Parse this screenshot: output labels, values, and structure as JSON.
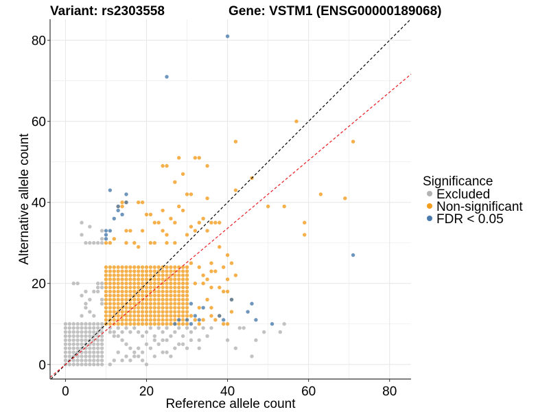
{
  "chart_data": {
    "type": "scatter",
    "title_left": "Variant: rs2303558",
    "title_right": "Gene: VSTM1 (ENSG00000189068)",
    "xlabel": "Reference allele count",
    "ylabel": "Alternative allele count",
    "xlim": [
      -3.8,
      85.3
    ],
    "ylim": [
      -3.6,
      85.2
    ],
    "xticks": [
      0,
      20,
      40,
      60,
      80
    ],
    "yticks": [
      0,
      20,
      40,
      60,
      80
    ],
    "grid": true,
    "legend": {
      "title": "Significance",
      "position": "right",
      "entries": [
        {
          "label": "Excluded",
          "color": "#b3b3b3"
        },
        {
          "label": "Non-significant",
          "color": "#f39c1e"
        },
        {
          "label": "FDR < 0.05",
          "color": "#4a7aab"
        }
      ]
    },
    "reference_lines": [
      {
        "name": "identity",
        "slope": 1.0,
        "intercept": 0,
        "color": "#000000",
        "style": "dashed"
      },
      {
        "name": "fit",
        "slope": 0.84,
        "intercept": 0,
        "color": "#e8191f",
        "style": "dashed"
      }
    ],
    "series": [
      {
        "name": "Excluded",
        "color": "#b3b3b3",
        "dense_block": {
          "x_range": [
            0,
            9
          ],
          "y_range": [
            0,
            10
          ],
          "note": "near-complete integer grid"
        },
        "points": [
          [
            1,
            10
          ],
          [
            2,
            9
          ],
          [
            3,
            10
          ],
          [
            4,
            12
          ],
          [
            5,
            15
          ],
          [
            5,
            14
          ],
          [
            6,
            13
          ],
          [
            7,
            12
          ],
          [
            6,
            16
          ],
          [
            5,
            18
          ],
          [
            7,
            18
          ],
          [
            8,
            18
          ],
          [
            9,
            16
          ],
          [
            9,
            15
          ],
          [
            8,
            19
          ],
          [
            8,
            20
          ],
          [
            9,
            19
          ],
          [
            9,
            20
          ],
          [
            3,
            20
          ],
          [
            4,
            17
          ],
          [
            2,
            20
          ],
          [
            4,
            35
          ],
          [
            6,
            34
          ],
          [
            9,
            33
          ],
          [
            9,
            30
          ],
          [
            9,
            31
          ],
          [
            8,
            30
          ],
          [
            7,
            30
          ],
          [
            6,
            30
          ],
          [
            5,
            30
          ],
          [
            4,
            32
          ],
          [
            10,
            10
          ],
          [
            11,
            9
          ],
          [
            12,
            8
          ],
          [
            13,
            7
          ],
          [
            14,
            6
          ],
          [
            15,
            5
          ],
          [
            16,
            4
          ],
          [
            17,
            3
          ],
          [
            18,
            2
          ],
          [
            19,
            1
          ],
          [
            20,
            0
          ],
          [
            11,
            8
          ],
          [
            12,
            7
          ],
          [
            13,
            9
          ],
          [
            14,
            8
          ],
          [
            15,
            9
          ],
          [
            16,
            8
          ],
          [
            17,
            9
          ],
          [
            18,
            8
          ],
          [
            19,
            7
          ],
          [
            20,
            8
          ],
          [
            21,
            9
          ],
          [
            22,
            7
          ],
          [
            23,
            9
          ],
          [
            24,
            8
          ],
          [
            25,
            9
          ],
          [
            26,
            7
          ],
          [
            27,
            8
          ],
          [
            28,
            9
          ],
          [
            29,
            7
          ],
          [
            30,
            9
          ],
          [
            31,
            8
          ],
          [
            32,
            9
          ],
          [
            33,
            6
          ],
          [
            34,
            9
          ],
          [
            35,
            7
          ],
          [
            36,
            9
          ],
          [
            40,
            6
          ],
          [
            43,
            9
          ],
          [
            44,
            9
          ],
          [
            42,
            4
          ],
          [
            46,
            2
          ],
          [
            47,
            6
          ],
          [
            49,
            8
          ],
          [
            53,
            8
          ],
          [
            54,
            10
          ],
          [
            30,
            4
          ],
          [
            31,
            6
          ],
          [
            33,
            4
          ],
          [
            25,
            3
          ],
          [
            26,
            2
          ],
          [
            22,
            2
          ],
          [
            24,
            3
          ],
          [
            14,
            1
          ],
          [
            11,
            0
          ],
          [
            12,
            1
          ],
          [
            13,
            3
          ],
          [
            15,
            2
          ],
          [
            16,
            1
          ],
          [
            17,
            2
          ],
          [
            18,
            4
          ],
          [
            19,
            3
          ],
          [
            20,
            5
          ],
          [
            21,
            4
          ],
          [
            22,
            6
          ],
          [
            23,
            5
          ],
          [
            24,
            6
          ],
          [
            25,
            6
          ],
          [
            27,
            4
          ],
          [
            28,
            5
          ],
          [
            29,
            5
          ]
        ]
      },
      {
        "name": "Non-significant",
        "color": "#f39c1e",
        "dense_block": {
          "x_range": [
            10,
            30
          ],
          "y_range": [
            10,
            24
          ],
          "note": "near-complete integer grid"
        },
        "points": [
          [
            57,
            60
          ],
          [
            42,
            55
          ],
          [
            71,
            55
          ],
          [
            28,
            51
          ],
          [
            32,
            51
          ],
          [
            33,
            51
          ],
          [
            24,
            49
          ],
          [
            25,
            49
          ],
          [
            35,
            49
          ],
          [
            29,
            47
          ],
          [
            46,
            46
          ],
          [
            27,
            45
          ],
          [
            42,
            43
          ],
          [
            63,
            42
          ],
          [
            69,
            41
          ],
          [
            31,
            42
          ],
          [
            35,
            41
          ],
          [
            30,
            42
          ],
          [
            14,
            40
          ],
          [
            15,
            40
          ],
          [
            18,
            40
          ],
          [
            19,
            40
          ],
          [
            13,
            39
          ],
          [
            14,
            39
          ],
          [
            24,
            38
          ],
          [
            21,
            37
          ],
          [
            28,
            39
          ],
          [
            29,
            38
          ],
          [
            50,
            39
          ],
          [
            54,
            39
          ],
          [
            59,
            35
          ],
          [
            59,
            32
          ],
          [
            36,
            35
          ],
          [
            37,
            35
          ],
          [
            38,
            35
          ],
          [
            33,
            35
          ],
          [
            34,
            36
          ],
          [
            35,
            33
          ],
          [
            20,
            37
          ],
          [
            22,
            35
          ],
          [
            23,
            35
          ],
          [
            26,
            36
          ],
          [
            27,
            35
          ],
          [
            31,
            34
          ],
          [
            32,
            33
          ],
          [
            24,
            33
          ],
          [
            25,
            32
          ],
          [
            30,
            32
          ],
          [
            15,
            33
          ],
          [
            16,
            33
          ],
          [
            19,
            33
          ],
          [
            10,
            30
          ],
          [
            11,
            30
          ],
          [
            12,
            31
          ],
          [
            15,
            30
          ],
          [
            17,
            30
          ],
          [
            18,
            29
          ],
          [
            21,
            30
          ],
          [
            22,
            30
          ],
          [
            25,
            30
          ],
          [
            27,
            30
          ],
          [
            38,
            29
          ],
          [
            40,
            27
          ],
          [
            31,
            25
          ],
          [
            33,
            24
          ],
          [
            36,
            25
          ],
          [
            39,
            24
          ],
          [
            41,
            25
          ],
          [
            34,
            22
          ],
          [
            35,
            21
          ],
          [
            36,
            23
          ],
          [
            37,
            23
          ],
          [
            40,
            21
          ],
          [
            42,
            22
          ],
          [
            30,
            20
          ],
          [
            32,
            20
          ],
          [
            34,
            20
          ],
          [
            36,
            19
          ],
          [
            38,
            19
          ],
          [
            39,
            18
          ],
          [
            40,
            18
          ],
          [
            41,
            16
          ],
          [
            35,
            16
          ],
          [
            33,
            14
          ],
          [
            36,
            14
          ],
          [
            41,
            13
          ],
          [
            26,
            14
          ],
          [
            28,
            13
          ],
          [
            30,
            12
          ],
          [
            31,
            12
          ],
          [
            32,
            11
          ],
          [
            33,
            10
          ],
          [
            34,
            11
          ],
          [
            36,
            12
          ],
          [
            37,
            11
          ],
          [
            38,
            12
          ],
          [
            39,
            10
          ],
          [
            40,
            10
          ],
          [
            29,
            10
          ]
        ]
      },
      {
        "name": "FDR < 0.05",
        "color": "#4a7aab",
        "points": [
          [
            40,
            81
          ],
          [
            25,
            71
          ],
          [
            11,
            43
          ],
          [
            15,
            42
          ],
          [
            15,
            40
          ],
          [
            13,
            39
          ],
          [
            13,
            38
          ],
          [
            14,
            37
          ],
          [
            12,
            36
          ],
          [
            10,
            33
          ],
          [
            11,
            33
          ],
          [
            10,
            32
          ],
          [
            10,
            31
          ],
          [
            71,
            27
          ],
          [
            41,
            16
          ],
          [
            45,
            13
          ],
          [
            46,
            15
          ],
          [
            47,
            11
          ],
          [
            51,
            10
          ],
          [
            31,
            15
          ],
          [
            34,
            14
          ],
          [
            38,
            12
          ],
          [
            39,
            11
          ],
          [
            30,
            11
          ],
          [
            32,
            12
          ],
          [
            33,
            11
          ],
          [
            28,
            11
          ],
          [
            27,
            10
          ],
          [
            31,
            10
          ]
        ]
      }
    ]
  }
}
